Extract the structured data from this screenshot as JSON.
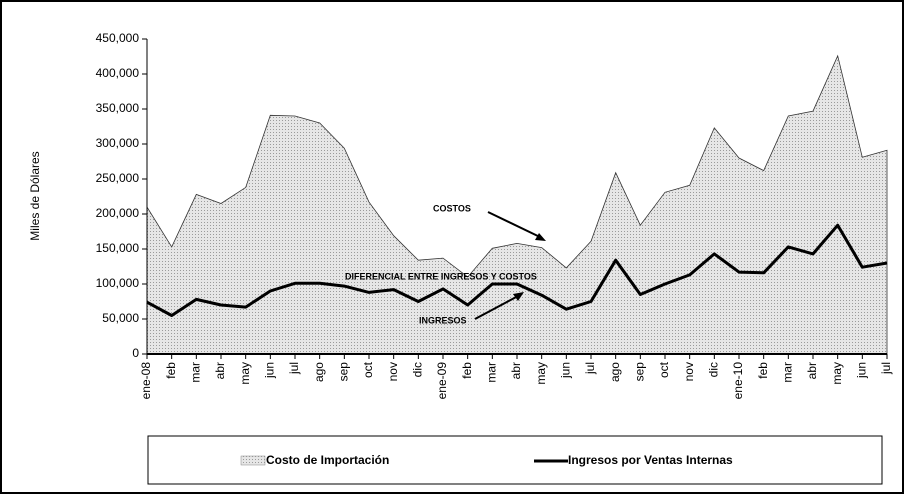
{
  "chart_data": {
    "type": "area",
    "y_label": "Miles de Dólares",
    "categories": [
      "ene-08",
      "feb",
      "mar",
      "abr",
      "may",
      "jun",
      "jul",
      "ago",
      "sep",
      "oct",
      "nov",
      "dic",
      "ene-09",
      "feb",
      "mar",
      "abr",
      "may",
      "jun",
      "jul",
      "ago",
      "sep",
      "oct",
      "nov",
      "dic",
      "ene-10",
      "feb",
      "mar",
      "abr",
      "may",
      "jun",
      "jul"
    ],
    "series": [
      {
        "name": "Costo de Importación",
        "type": "area",
        "color": "#d9d9d9",
        "values": [
          210000,
          153000,
          228000,
          215000,
          238000,
          341000,
          340000,
          330000,
          294000,
          217000,
          169000,
          134000,
          137000,
          110000,
          151000,
          158000,
          152000,
          123000,
          161000,
          259000,
          184000,
          231000,
          241000,
          323000,
          280000,
          262000,
          340000,
          347000,
          426000,
          281000,
          291000
        ]
      },
      {
        "name": "Ingresos por Ventas Internas",
        "type": "line",
        "color": "#000000",
        "values": [
          74000,
          55000,
          78000,
          70000,
          67000,
          90000,
          101000,
          101000,
          97000,
          88000,
          92000,
          75000,
          93000,
          70000,
          100000,
          100000,
          84000,
          64000,
          75000,
          134000,
          85000,
          100000,
          113000,
          143000,
          117000,
          116000,
          153000,
          143000,
          184000,
          124000,
          130000
        ]
      }
    ],
    "annotations": [
      "COSTOS",
      "DIFERENCIAL ENTRE INGRESOS Y COSTOS",
      "INGRESOS"
    ],
    "ylim": [
      0,
      450000
    ],
    "yticks": [
      0,
      {
        "value": 50000,
        "label": "50,000"
      },
      {
        "value": 100000,
        "label": "100,000"
      },
      {
        "value": 150000,
        "label": "150,000"
      },
      {
        "value": 200000,
        "label": "200,000"
      },
      {
        "value": 250000,
        "label": "250,000"
      },
      {
        "value": 300000,
        "label": "300,000"
      },
      {
        "value": 350000,
        "label": "350,000"
      },
      {
        "value": 400000,
        "label": "400,000"
      },
      {
        "value": 450000,
        "label": "450,000"
      }
    ],
    "legend": "bottom"
  }
}
